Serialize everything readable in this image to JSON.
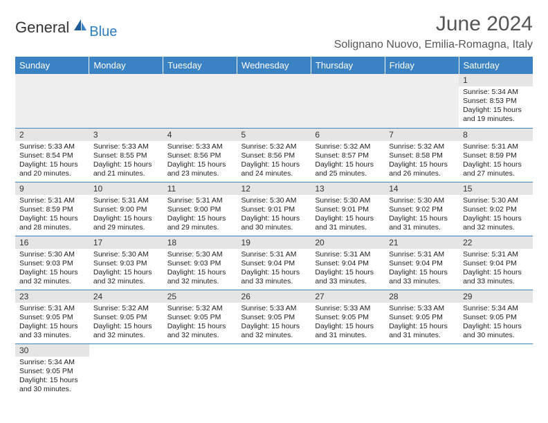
{
  "brand": {
    "text1": "General",
    "text2": "Blue"
  },
  "title": "June 2024",
  "location": "Solignano Nuovo, Emilia-Romagna, Italy",
  "colors": {
    "header_bg": "#3b82c4",
    "header_fg": "#ffffff",
    "daynum_bg": "#e5e5e5",
    "border": "#3b82c4",
    "brand_blue": "#2b7dbf"
  },
  "day_names": [
    "Sunday",
    "Monday",
    "Tuesday",
    "Wednesday",
    "Thursday",
    "Friday",
    "Saturday"
  ],
  "weeks": [
    [
      null,
      null,
      null,
      null,
      null,
      null,
      {
        "n": "1",
        "sr": "Sunrise: 5:34 AM",
        "ss": "Sunset: 8:53 PM",
        "d1": "Daylight: 15 hours",
        "d2": "and 19 minutes."
      }
    ],
    [
      {
        "n": "2",
        "sr": "Sunrise: 5:33 AM",
        "ss": "Sunset: 8:54 PM",
        "d1": "Daylight: 15 hours",
        "d2": "and 20 minutes."
      },
      {
        "n": "3",
        "sr": "Sunrise: 5:33 AM",
        "ss": "Sunset: 8:55 PM",
        "d1": "Daylight: 15 hours",
        "d2": "and 21 minutes."
      },
      {
        "n": "4",
        "sr": "Sunrise: 5:33 AM",
        "ss": "Sunset: 8:56 PM",
        "d1": "Daylight: 15 hours",
        "d2": "and 23 minutes."
      },
      {
        "n": "5",
        "sr": "Sunrise: 5:32 AM",
        "ss": "Sunset: 8:56 PM",
        "d1": "Daylight: 15 hours",
        "d2": "and 24 minutes."
      },
      {
        "n": "6",
        "sr": "Sunrise: 5:32 AM",
        "ss": "Sunset: 8:57 PM",
        "d1": "Daylight: 15 hours",
        "d2": "and 25 minutes."
      },
      {
        "n": "7",
        "sr": "Sunrise: 5:32 AM",
        "ss": "Sunset: 8:58 PM",
        "d1": "Daylight: 15 hours",
        "d2": "and 26 minutes."
      },
      {
        "n": "8",
        "sr": "Sunrise: 5:31 AM",
        "ss": "Sunset: 8:59 PM",
        "d1": "Daylight: 15 hours",
        "d2": "and 27 minutes."
      }
    ],
    [
      {
        "n": "9",
        "sr": "Sunrise: 5:31 AM",
        "ss": "Sunset: 8:59 PM",
        "d1": "Daylight: 15 hours",
        "d2": "and 28 minutes."
      },
      {
        "n": "10",
        "sr": "Sunrise: 5:31 AM",
        "ss": "Sunset: 9:00 PM",
        "d1": "Daylight: 15 hours",
        "d2": "and 29 minutes."
      },
      {
        "n": "11",
        "sr": "Sunrise: 5:31 AM",
        "ss": "Sunset: 9:00 PM",
        "d1": "Daylight: 15 hours",
        "d2": "and 29 minutes."
      },
      {
        "n": "12",
        "sr": "Sunrise: 5:30 AM",
        "ss": "Sunset: 9:01 PM",
        "d1": "Daylight: 15 hours",
        "d2": "and 30 minutes."
      },
      {
        "n": "13",
        "sr": "Sunrise: 5:30 AM",
        "ss": "Sunset: 9:01 PM",
        "d1": "Daylight: 15 hours",
        "d2": "and 31 minutes."
      },
      {
        "n": "14",
        "sr": "Sunrise: 5:30 AM",
        "ss": "Sunset: 9:02 PM",
        "d1": "Daylight: 15 hours",
        "d2": "and 31 minutes."
      },
      {
        "n": "15",
        "sr": "Sunrise: 5:30 AM",
        "ss": "Sunset: 9:02 PM",
        "d1": "Daylight: 15 hours",
        "d2": "and 32 minutes."
      }
    ],
    [
      {
        "n": "16",
        "sr": "Sunrise: 5:30 AM",
        "ss": "Sunset: 9:03 PM",
        "d1": "Daylight: 15 hours",
        "d2": "and 32 minutes."
      },
      {
        "n": "17",
        "sr": "Sunrise: 5:30 AM",
        "ss": "Sunset: 9:03 PM",
        "d1": "Daylight: 15 hours",
        "d2": "and 32 minutes."
      },
      {
        "n": "18",
        "sr": "Sunrise: 5:30 AM",
        "ss": "Sunset: 9:03 PM",
        "d1": "Daylight: 15 hours",
        "d2": "and 32 minutes."
      },
      {
        "n": "19",
        "sr": "Sunrise: 5:31 AM",
        "ss": "Sunset: 9:04 PM",
        "d1": "Daylight: 15 hours",
        "d2": "and 33 minutes."
      },
      {
        "n": "20",
        "sr": "Sunrise: 5:31 AM",
        "ss": "Sunset: 9:04 PM",
        "d1": "Daylight: 15 hours",
        "d2": "and 33 minutes."
      },
      {
        "n": "21",
        "sr": "Sunrise: 5:31 AM",
        "ss": "Sunset: 9:04 PM",
        "d1": "Daylight: 15 hours",
        "d2": "and 33 minutes."
      },
      {
        "n": "22",
        "sr": "Sunrise: 5:31 AM",
        "ss": "Sunset: 9:04 PM",
        "d1": "Daylight: 15 hours",
        "d2": "and 33 minutes."
      }
    ],
    [
      {
        "n": "23",
        "sr": "Sunrise: 5:31 AM",
        "ss": "Sunset: 9:05 PM",
        "d1": "Daylight: 15 hours",
        "d2": "and 33 minutes."
      },
      {
        "n": "24",
        "sr": "Sunrise: 5:32 AM",
        "ss": "Sunset: 9:05 PM",
        "d1": "Daylight: 15 hours",
        "d2": "and 32 minutes."
      },
      {
        "n": "25",
        "sr": "Sunrise: 5:32 AM",
        "ss": "Sunset: 9:05 PM",
        "d1": "Daylight: 15 hours",
        "d2": "and 32 minutes."
      },
      {
        "n": "26",
        "sr": "Sunrise: 5:33 AM",
        "ss": "Sunset: 9:05 PM",
        "d1": "Daylight: 15 hours",
        "d2": "and 32 minutes."
      },
      {
        "n": "27",
        "sr": "Sunrise: 5:33 AM",
        "ss": "Sunset: 9:05 PM",
        "d1": "Daylight: 15 hours",
        "d2": "and 31 minutes."
      },
      {
        "n": "28",
        "sr": "Sunrise: 5:33 AM",
        "ss": "Sunset: 9:05 PM",
        "d1": "Daylight: 15 hours",
        "d2": "and 31 minutes."
      },
      {
        "n": "29",
        "sr": "Sunrise: 5:34 AM",
        "ss": "Sunset: 9:05 PM",
        "d1": "Daylight: 15 hours",
        "d2": "and 30 minutes."
      }
    ],
    [
      {
        "n": "30",
        "sr": "Sunrise: 5:34 AM",
        "ss": "Sunset: 9:05 PM",
        "d1": "Daylight: 15 hours",
        "d2": "and 30 minutes."
      },
      null,
      null,
      null,
      null,
      null,
      null
    ]
  ]
}
